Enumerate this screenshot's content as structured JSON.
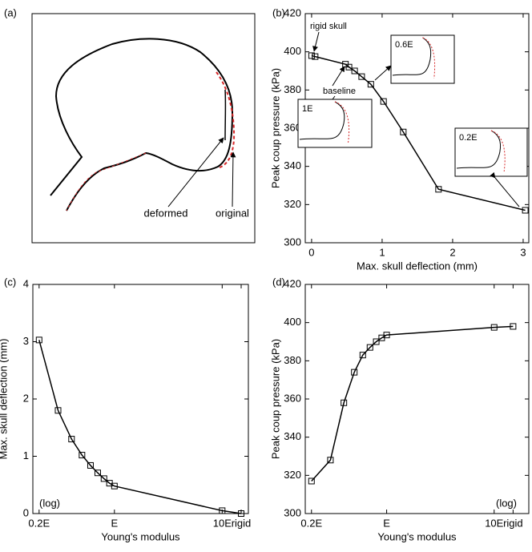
{
  "chart_data": [
    {
      "type": "outline",
      "panel": "(a)",
      "annotations": [
        "deformed",
        "original"
      ]
    },
    {
      "type": "line",
      "panel": "(b)",
      "xlabel": "Max. skull deflection (mm)",
      "ylabel": "Peak coup pressure (kPa)",
      "x": [
        0,
        0.05,
        0.48,
        0.53,
        0.61,
        0.71,
        0.84,
        1.02,
        1.3,
        1.8,
        3.03
      ],
      "values": [
        398,
        397.5,
        393.5,
        392,
        390,
        387,
        383,
        374,
        358,
        328,
        317
      ],
      "color": "#000000",
      "xlim": [
        -0.09,
        3.08
      ],
      "ylim": [
        300,
        420
      ],
      "xticks": [
        0,
        1,
        2,
        3
      ],
      "yticks": [
        300,
        320,
        340,
        360,
        380,
        400,
        420
      ],
      "annotations": [
        "rigid skull",
        "baseline"
      ],
      "insets": [
        "0.6E",
        "1E",
        "0.2E"
      ]
    },
    {
      "type": "line",
      "panel": "(c)",
      "xlabel": "Young's modulus",
      "ylabel": "Max. skull deflection (mm)",
      "xscale": "log",
      "note": "(log)",
      "x": [
        0.2,
        0.3,
        0.4,
        0.5,
        0.6,
        0.7,
        0.8,
        0.9,
        1,
        10,
        15
      ],
      "values": [
        3.03,
        1.8,
        1.3,
        1.02,
        0.84,
        0.71,
        0.61,
        0.53,
        0.48,
        0.05,
        0
      ],
      "color": "#000000",
      "xlim": [
        0.175,
        17.5
      ],
      "ylim": [
        0,
        4
      ],
      "xticks": [
        {
          "value": 0.2,
          "label": "0.2E"
        },
        {
          "value": 1,
          "label": "E"
        },
        {
          "value": 10,
          "label": "10E"
        },
        {
          "value": 15,
          "label": "rigid"
        }
      ],
      "yticks": [
        0,
        1,
        2,
        3,
        4
      ]
    },
    {
      "type": "line",
      "panel": "(d)",
      "xlabel": "Young's modulus",
      "ylabel": "Peak coup pressure (kPa)",
      "xscale": "log",
      "note": "(log)",
      "x": [
        0.2,
        0.3,
        0.4,
        0.5,
        0.6,
        0.7,
        0.8,
        0.9,
        1,
        10,
        15
      ],
      "values": [
        317,
        328,
        358,
        374,
        383,
        387,
        390,
        392,
        393.5,
        397.5,
        398
      ],
      "color": "#000000",
      "xlim": [
        0.175,
        21
      ],
      "ylim": [
        300,
        420
      ],
      "xticks": [
        {
          "value": 0.2,
          "label": "0.2E"
        },
        {
          "value": 1,
          "label": "E"
        },
        {
          "value": 10,
          "label": "10E"
        },
        {
          "value": 15,
          "label": "rigid"
        }
      ],
      "yticks": [
        300,
        320,
        340,
        360,
        380,
        400,
        420
      ]
    }
  ]
}
